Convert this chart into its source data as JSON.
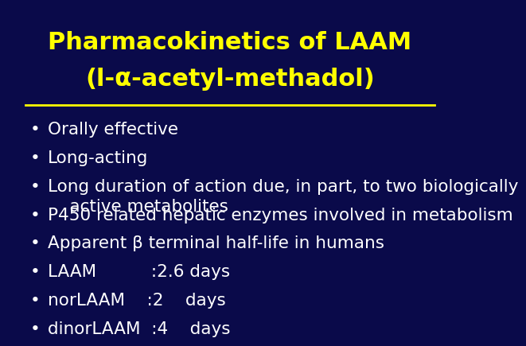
{
  "background_color": "#0a0a4a",
  "title_line1": "Pharmacokinetics of LAAM",
  "title_line2": "(l-α-acetyl-methadol)",
  "title_color": "#ffff00",
  "title_fontsize": 22,
  "divider_color": "#ffff00",
  "bullet_color": "#ffffff",
  "bullet_fontsize": 15.5,
  "bullets": [
    "Orally effective",
    "Long-acting",
    "Long duration of action due, in part, to two biologically\n    active metabolites",
    "P450 related hepatic enzymes involved in metabolism",
    "Apparent β terminal half-life in humans",
    "LAAM          :2.6 days",
    "norLAAM    :2    days",
    "dinorLAAM  :4    days"
  ]
}
